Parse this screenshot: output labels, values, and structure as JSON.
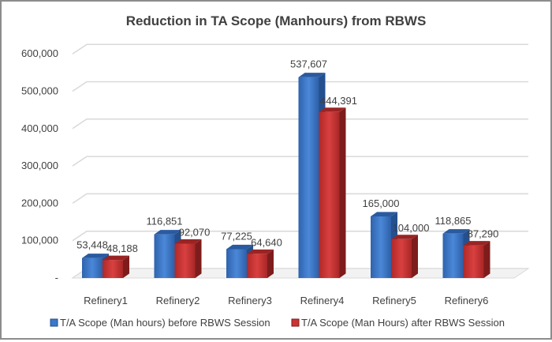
{
  "chart_data": {
    "type": "bar",
    "title": "Reduction in TA Scope (Manhours) from RBWS",
    "xlabel": "",
    "ylabel": "",
    "categories": [
      "Refinery1",
      "Refinery2",
      "Refinery3",
      "Refinery4",
      "Refinery5",
      "Refinery6"
    ],
    "series": [
      {
        "name": "T/A Scope (Man hours) before RBWS Session",
        "color": "#3a78c8",
        "values": [
          53448,
          116851,
          77225,
          537607,
          165000,
          118865
        ],
        "labels": [
          "53,448",
          "116,851",
          "77,225",
          "537,607",
          "165,000",
          "118,865"
        ]
      },
      {
        "name": "T/A Scope (Man Hours) after RBWS Session",
        "color": "#cc3333",
        "values": [
          48188,
          92070,
          64640,
          444391,
          104000,
          87290
        ],
        "labels": [
          "48,188",
          "92,070",
          "64,640",
          "444,391",
          "104,000",
          "87,290"
        ]
      }
    ],
    "ylim": [
      0,
      600000
    ],
    "yticks": [
      0,
      100000,
      200000,
      300000,
      400000,
      500000,
      600000
    ],
    "ytick_labels": [
      "-",
      "100,000",
      "200,000",
      "300,000",
      "400,000",
      "500,000",
      "600,000"
    ],
    "grid": true,
    "legend_position": "bottom",
    "style": "3d-clustered-column"
  }
}
